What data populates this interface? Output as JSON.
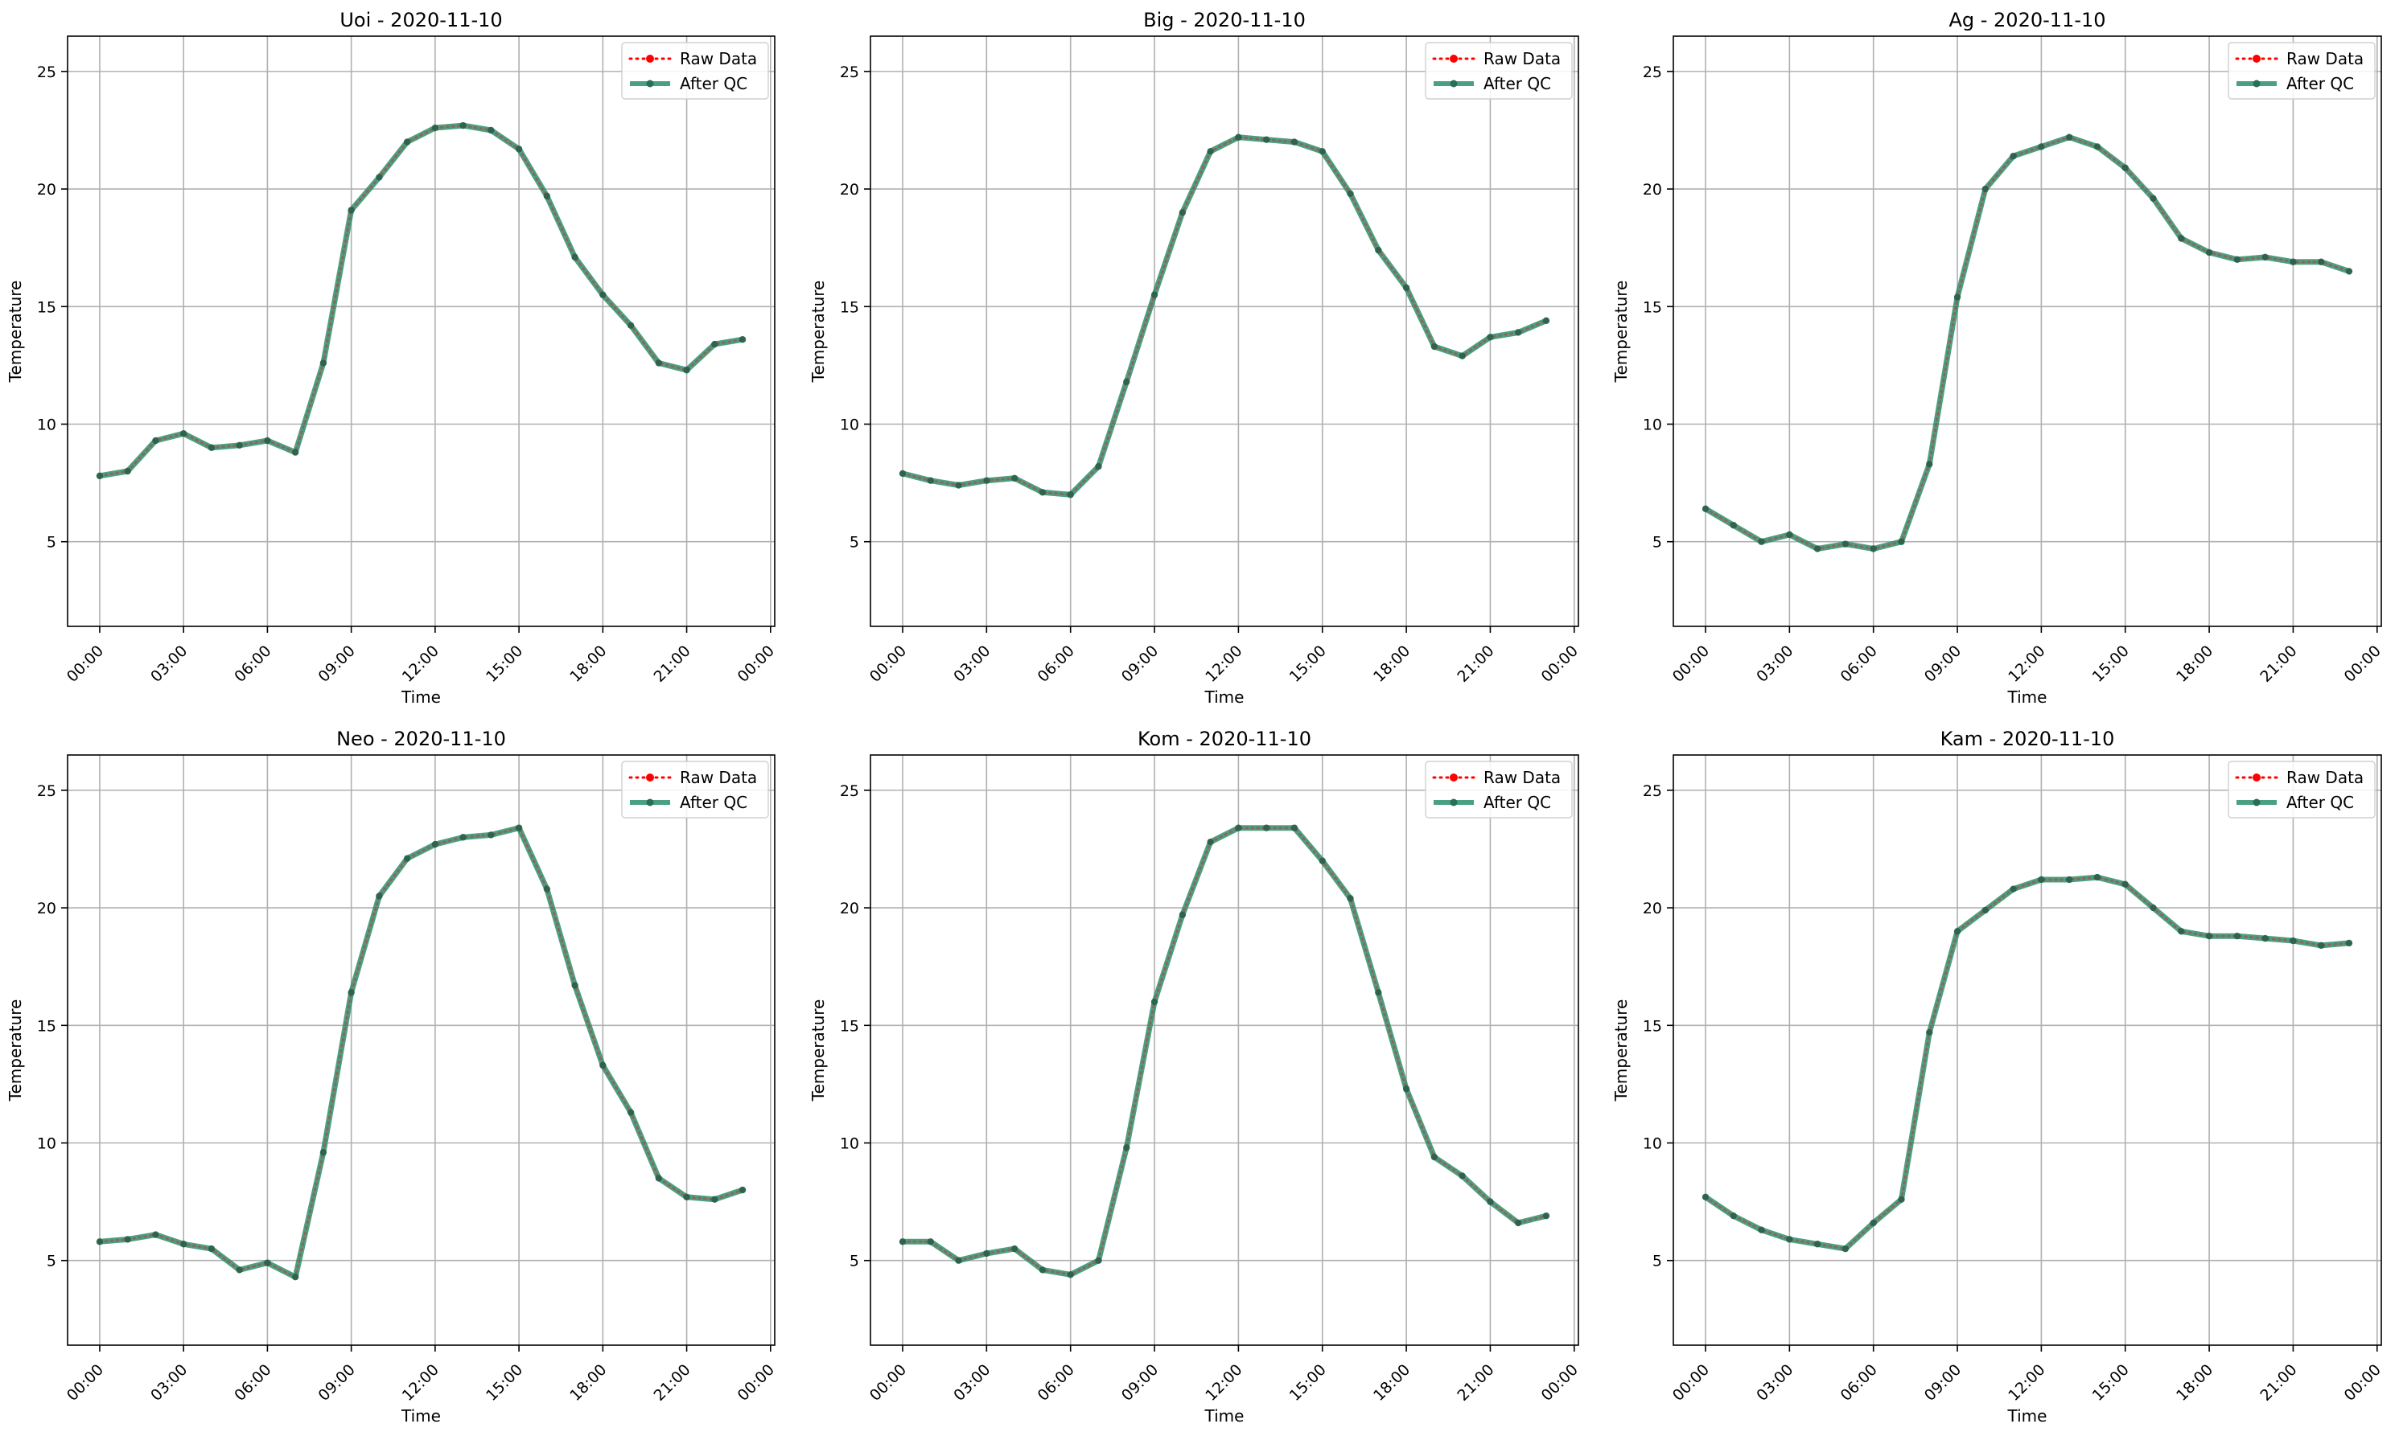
{
  "chart_data": [
    {
      "type": "line",
      "title": "Uoi - 2020-11-10",
      "xlabel": "Time",
      "ylabel": "Temperature",
      "ylim": [
        1.4,
        26.5
      ],
      "x_hours": [
        0,
        1,
        2,
        3,
        4,
        5,
        6,
        7,
        8,
        9,
        10,
        11,
        12,
        13,
        14,
        15,
        16,
        17,
        18,
        19,
        20,
        21,
        22,
        23
      ],
      "xticks": [
        "00:00",
        "03:00",
        "06:00",
        "09:00",
        "12:00",
        "15:00",
        "18:00",
        "21:00",
        "00:00"
      ],
      "yticks": [
        5,
        10,
        15,
        20,
        25
      ],
      "grid": true,
      "legend_position": "top-right",
      "series": [
        {
          "name": "Raw Data",
          "color": "#ff0000",
          "values": [
            7.8,
            8.0,
            9.3,
            9.6,
            9.0,
            9.1,
            9.3,
            8.8,
            12.6,
            19.1,
            20.5,
            22.0,
            22.6,
            22.7,
            22.5,
            21.7,
            19.7,
            17.1,
            15.5,
            14.2,
            12.6,
            12.3,
            13.4,
            13.6
          ]
        },
        {
          "name": "After QC",
          "color": "#2a8f70",
          "values": [
            7.8,
            8.0,
            9.3,
            9.6,
            9.0,
            9.1,
            9.3,
            8.8,
            12.6,
            19.1,
            20.5,
            22.0,
            22.6,
            22.7,
            22.5,
            21.7,
            19.7,
            17.1,
            15.5,
            14.2,
            12.6,
            12.3,
            13.4,
            13.6
          ]
        }
      ]
    },
    {
      "type": "line",
      "title": "Big - 2020-11-10",
      "xlabel": "Time",
      "ylabel": "Temperature",
      "ylim": [
        1.4,
        26.5
      ],
      "x_hours": [
        0,
        1,
        2,
        3,
        4,
        5,
        6,
        7,
        8,
        9,
        10,
        11,
        12,
        13,
        14,
        15,
        16,
        17,
        18,
        19,
        20,
        21,
        22,
        23
      ],
      "xticks": [
        "00:00",
        "03:00",
        "06:00",
        "09:00",
        "12:00",
        "15:00",
        "18:00",
        "21:00",
        "00:00"
      ],
      "yticks": [
        5,
        10,
        15,
        20,
        25
      ],
      "grid": true,
      "legend_position": "top-right",
      "series": [
        {
          "name": "Raw Data",
          "color": "#ff0000",
          "values": [
            7.9,
            7.6,
            7.4,
            7.6,
            7.7,
            7.1,
            7.0,
            8.2,
            11.8,
            15.5,
            19.0,
            21.6,
            22.2,
            22.1,
            22.0,
            21.6,
            19.8,
            17.4,
            15.8,
            13.3,
            12.9,
            13.7,
            13.9,
            14.4
          ]
        },
        {
          "name": "After QC",
          "color": "#2a8f70",
          "values": [
            7.9,
            7.6,
            7.4,
            7.6,
            7.7,
            7.1,
            7.0,
            8.2,
            11.8,
            15.5,
            19.0,
            21.6,
            22.2,
            22.1,
            22.0,
            21.6,
            19.8,
            17.4,
            15.8,
            13.3,
            12.9,
            13.7,
            13.9,
            14.4
          ]
        }
      ]
    },
    {
      "type": "line",
      "title": "Ag - 2020-11-10",
      "xlabel": "Time",
      "ylabel": "Temperature",
      "ylim": [
        1.4,
        26.5
      ],
      "x_hours": [
        0,
        1,
        2,
        3,
        4,
        5,
        6,
        7,
        8,
        9,
        10,
        11,
        12,
        13,
        14,
        15,
        16,
        17,
        18,
        19,
        20,
        21,
        22,
        23
      ],
      "xticks": [
        "00:00",
        "03:00",
        "06:00",
        "09:00",
        "12:00",
        "15:00",
        "18:00",
        "21:00",
        "00:00"
      ],
      "yticks": [
        5,
        10,
        15,
        20,
        25
      ],
      "grid": true,
      "legend_position": "top-right",
      "series": [
        {
          "name": "Raw Data",
          "color": "#ff0000",
          "values": [
            6.4,
            5.7,
            5.0,
            5.3,
            4.7,
            4.9,
            4.7,
            5.0,
            8.3,
            15.4,
            20.0,
            21.4,
            21.8,
            22.2,
            21.8,
            20.9,
            19.6,
            17.9,
            17.3,
            17.0,
            17.1,
            16.9,
            16.9,
            16.5
          ]
        },
        {
          "name": "After QC",
          "color": "#2a8f70",
          "values": [
            6.4,
            5.7,
            5.0,
            5.3,
            4.7,
            4.9,
            4.7,
            5.0,
            8.3,
            15.4,
            20.0,
            21.4,
            21.8,
            22.2,
            21.8,
            20.9,
            19.6,
            17.9,
            17.3,
            17.0,
            17.1,
            16.9,
            16.9,
            16.5
          ]
        }
      ]
    },
    {
      "type": "line",
      "title": "Neo - 2020-11-10",
      "xlabel": "Time",
      "ylabel": "Temperature",
      "ylim": [
        1.4,
        26.5
      ],
      "x_hours": [
        0,
        1,
        2,
        3,
        4,
        5,
        6,
        7,
        8,
        9,
        10,
        11,
        12,
        13,
        14,
        15,
        16,
        17,
        18,
        19,
        20,
        21,
        22,
        23
      ],
      "xticks": [
        "00:00",
        "03:00",
        "06:00",
        "09:00",
        "12:00",
        "15:00",
        "18:00",
        "21:00",
        "00:00"
      ],
      "yticks": [
        5,
        10,
        15,
        20,
        25
      ],
      "grid": true,
      "legend_position": "top-right",
      "series": [
        {
          "name": "Raw Data",
          "color": "#ff0000",
          "values": [
            5.8,
            5.9,
            6.1,
            5.7,
            5.5,
            4.6,
            4.9,
            4.3,
            9.6,
            16.4,
            20.5,
            22.1,
            22.7,
            23.0,
            23.1,
            23.4,
            20.8,
            16.7,
            13.3,
            11.3,
            8.5,
            7.7,
            7.6,
            8.0
          ]
        },
        {
          "name": "After QC",
          "color": "#2a8f70",
          "values": [
            5.8,
            5.9,
            6.1,
            5.7,
            5.5,
            4.6,
            4.9,
            4.3,
            9.6,
            16.4,
            20.5,
            22.1,
            22.7,
            23.0,
            23.1,
            23.4,
            20.8,
            16.7,
            13.3,
            11.3,
            8.5,
            7.7,
            7.6,
            8.0
          ]
        }
      ]
    },
    {
      "type": "line",
      "title": "Kom - 2020-11-10",
      "xlabel": "Time",
      "ylabel": "Temperature",
      "ylim": [
        1.4,
        26.5
      ],
      "x_hours": [
        0,
        1,
        2,
        3,
        4,
        5,
        6,
        7,
        8,
        9,
        10,
        11,
        12,
        13,
        14,
        15,
        16,
        17,
        18,
        19,
        20,
        21,
        22,
        23
      ],
      "xticks": [
        "00:00",
        "03:00",
        "06:00",
        "09:00",
        "12:00",
        "15:00",
        "18:00",
        "21:00",
        "00:00"
      ],
      "yticks": [
        5,
        10,
        15,
        20,
        25
      ],
      "grid": true,
      "legend_position": "top-right",
      "series": [
        {
          "name": "Raw Data",
          "color": "#ff0000",
          "values": [
            5.8,
            5.8,
            5.0,
            5.3,
            5.5,
            4.6,
            4.4,
            5.0,
            9.8,
            16.0,
            19.7,
            22.8,
            23.4,
            23.4,
            23.4,
            22.0,
            20.4,
            16.4,
            12.3,
            9.4,
            8.6,
            7.5,
            6.6,
            6.9
          ]
        },
        {
          "name": "After QC",
          "color": "#2a8f70",
          "values": [
            5.8,
            5.8,
            5.0,
            5.3,
            5.5,
            4.6,
            4.4,
            5.0,
            9.8,
            16.0,
            19.7,
            22.8,
            23.4,
            23.4,
            23.4,
            22.0,
            20.4,
            16.4,
            12.3,
            9.4,
            8.6,
            7.5,
            6.6,
            6.9
          ]
        }
      ]
    },
    {
      "type": "line",
      "title": "Kam - 2020-11-10",
      "xlabel": "Time",
      "ylabel": "Temperature",
      "ylim": [
        1.4,
        26.5
      ],
      "x_hours": [
        0,
        1,
        2,
        3,
        4,
        5,
        6,
        7,
        8,
        9,
        10,
        11,
        12,
        13,
        14,
        15,
        16,
        17,
        18,
        19,
        20,
        21,
        22,
        23
      ],
      "xticks": [
        "00:00",
        "03:00",
        "06:00",
        "09:00",
        "12:00",
        "15:00",
        "18:00",
        "21:00",
        "00:00"
      ],
      "yticks": [
        5,
        10,
        15,
        20,
        25
      ],
      "grid": true,
      "legend_position": "top-right",
      "series": [
        {
          "name": "Raw Data",
          "color": "#ff0000",
          "values": [
            7.7,
            6.9,
            6.3,
            5.9,
            5.7,
            5.5,
            6.6,
            7.6,
            14.7,
            19.0,
            19.9,
            20.8,
            21.2,
            21.2,
            21.3,
            21.0,
            20.0,
            19.0,
            18.8,
            18.8,
            18.7,
            18.6,
            18.4,
            18.5
          ]
        },
        {
          "name": "After QC",
          "color": "#2a8f70",
          "values": [
            7.7,
            6.9,
            6.3,
            5.9,
            5.7,
            5.5,
            6.6,
            7.6,
            14.7,
            19.0,
            19.9,
            20.8,
            21.2,
            21.2,
            21.3,
            21.0,
            20.0,
            19.0,
            18.8,
            18.8,
            18.7,
            18.6,
            18.4,
            18.5
          ]
        }
      ]
    }
  ]
}
